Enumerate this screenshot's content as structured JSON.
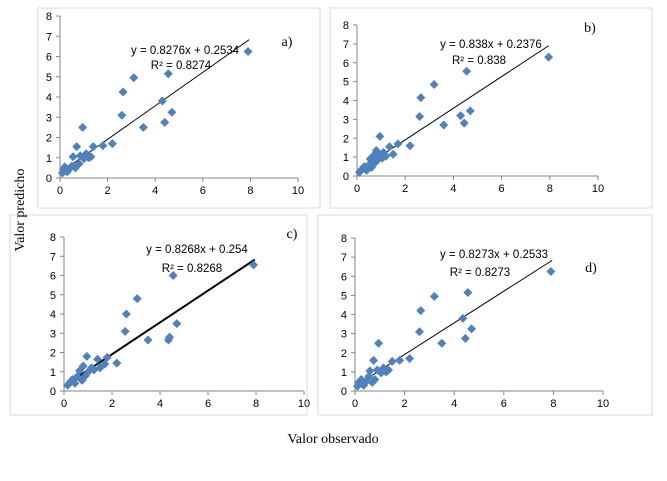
{
  "axes": {
    "xlabel": "Valor observado",
    "ylabel": "Valor predicho"
  },
  "chart_data": [
    {
      "type": "scatter",
      "panel": "a)",
      "equation": "y = 0.8276x + 0.2534",
      "r2": "R² = 0.8274",
      "trendline": {
        "slope": 0.8276,
        "intercept": 0.2534
      },
      "thick_trendline": false,
      "xlim": [
        0,
        10
      ],
      "ylim": [
        0,
        8
      ],
      "xticks": [
        0,
        2,
        4,
        6,
        8,
        10
      ],
      "yticks": [
        0,
        1,
        2,
        3,
        4,
        5,
        6,
        7,
        8
      ],
      "points": [
        [
          0.1,
          0.25
        ],
        [
          0.15,
          0.4
        ],
        [
          0.2,
          0.55
        ],
        [
          0.3,
          0.3
        ],
        [
          0.4,
          0.45
        ],
        [
          0.5,
          0.6
        ],
        [
          0.55,
          1.05
        ],
        [
          0.65,
          0.5
        ],
        [
          0.7,
          1.55
        ],
        [
          0.8,
          0.7
        ],
        [
          0.85,
          1.1
        ],
        [
          0.95,
          2.5
        ],
        [
          1.0,
          0.95
        ],
        [
          1.1,
          1.2
        ],
        [
          1.2,
          1.0
        ],
        [
          1.3,
          1.05
        ],
        [
          1.4,
          1.55
        ],
        [
          1.8,
          1.6
        ],
        [
          2.2,
          1.7
        ],
        [
          2.6,
          3.1
        ],
        [
          2.65,
          4.25
        ],
        [
          3.1,
          4.95
        ],
        [
          3.5,
          2.5
        ],
        [
          4.3,
          3.8
        ],
        [
          4.4,
          2.75
        ],
        [
          4.55,
          5.15
        ],
        [
          4.7,
          3.25
        ],
        [
          7.9,
          6.25
        ]
      ]
    },
    {
      "type": "scatter",
      "panel": "b)",
      "equation": "y = 0.838x + 0.2376",
      "r2": "R² = 0.838",
      "trendline": {
        "slope": 0.838,
        "intercept": 0.2376
      },
      "thick_trendline": false,
      "xlim": [
        0,
        10
      ],
      "ylim": [
        0,
        8
      ],
      "xticks": [
        0,
        2,
        4,
        6,
        8,
        10
      ],
      "yticks": [
        0,
        1,
        2,
        3,
        4,
        5,
        6,
        7,
        8
      ],
      "points": [
        [
          0.1,
          0.2
        ],
        [
          0.2,
          0.35
        ],
        [
          0.3,
          0.5
        ],
        [
          0.4,
          0.3
        ],
        [
          0.5,
          0.6
        ],
        [
          0.55,
          0.9
        ],
        [
          0.6,
          0.45
        ],
        [
          0.7,
          1.1
        ],
        [
          0.75,
          0.7
        ],
        [
          0.8,
          1.35
        ],
        [
          0.85,
          0.85
        ],
        [
          0.9,
          1.2
        ],
        [
          0.95,
          2.1
        ],
        [
          1.05,
          0.95
        ],
        [
          1.1,
          1.25
        ],
        [
          1.2,
          1.05
        ],
        [
          1.35,
          1.55
        ],
        [
          1.5,
          1.15
        ],
        [
          1.7,
          1.7
        ],
        [
          2.2,
          1.6
        ],
        [
          2.6,
          3.15
        ],
        [
          2.65,
          4.15
        ],
        [
          3.2,
          4.85
        ],
        [
          3.6,
          2.7
        ],
        [
          4.3,
          3.2
        ],
        [
          4.45,
          2.8
        ],
        [
          4.55,
          5.55
        ],
        [
          4.7,
          3.45
        ],
        [
          7.95,
          6.3
        ]
      ]
    },
    {
      "type": "scatter",
      "panel": "c)",
      "equation": "y = 0.8268x + 0.254",
      "r2": "R² = 0.8268",
      "trendline": {
        "slope": 0.8268,
        "intercept": 0.254
      },
      "thick_trendline": true,
      "xlim": [
        0,
        10
      ],
      "ylim": [
        0,
        8
      ],
      "xticks": [
        0,
        2,
        4,
        6,
        8,
        10
      ],
      "yticks": [
        0,
        1,
        2,
        3,
        4,
        5,
        6,
        7,
        8
      ],
      "points": [
        [
          0.15,
          0.3
        ],
        [
          0.25,
          0.45
        ],
        [
          0.35,
          0.6
        ],
        [
          0.45,
          0.4
        ],
        [
          0.55,
          0.75
        ],
        [
          0.65,
          1.05
        ],
        [
          0.75,
          0.55
        ],
        [
          0.8,
          1.3
        ],
        [
          0.9,
          0.8
        ],
        [
          0.95,
          1.8
        ],
        [
          1.05,
          1.05
        ],
        [
          1.15,
          1.2
        ],
        [
          1.25,
          1.1
        ],
        [
          1.4,
          1.65
        ],
        [
          1.5,
          1.2
        ],
        [
          1.7,
          1.4
        ],
        [
          1.8,
          1.75
        ],
        [
          2.2,
          1.45
        ],
        [
          2.55,
          3.1
        ],
        [
          2.6,
          4.0
        ],
        [
          3.05,
          4.8
        ],
        [
          3.5,
          2.65
        ],
        [
          4.35,
          2.65
        ],
        [
          4.4,
          2.8
        ],
        [
          4.55,
          6.0
        ],
        [
          4.7,
          3.5
        ],
        [
          7.9,
          6.55
        ]
      ]
    },
    {
      "type": "scatter",
      "panel": "d)",
      "equation": "y = 0.8273x + 0.2533",
      "r2": "R² = 0.8273",
      "trendline": {
        "slope": 0.8273,
        "intercept": 0.2533
      },
      "thick_trendline": false,
      "xlim": [
        0,
        10
      ],
      "ylim": [
        0,
        8
      ],
      "xticks": [
        0,
        2,
        4,
        6,
        8,
        10
      ],
      "yticks": [
        0,
        1,
        2,
        3,
        4,
        5,
        6,
        7,
        8
      ],
      "points": [
        [
          0.1,
          0.25
        ],
        [
          0.15,
          0.45
        ],
        [
          0.25,
          0.6
        ],
        [
          0.35,
          0.3
        ],
        [
          0.45,
          0.5
        ],
        [
          0.55,
          0.75
        ],
        [
          0.6,
          1.05
        ],
        [
          0.7,
          0.45
        ],
        [
          0.75,
          1.6
        ],
        [
          0.8,
          0.6
        ],
        [
          0.9,
          1.1
        ],
        [
          0.95,
          2.5
        ],
        [
          1.05,
          0.95
        ],
        [
          1.15,
          1.2
        ],
        [
          1.25,
          1.0
        ],
        [
          1.35,
          1.1
        ],
        [
          1.5,
          1.55
        ],
        [
          1.8,
          1.6
        ],
        [
          2.2,
          1.7
        ],
        [
          2.6,
          3.1
        ],
        [
          2.65,
          4.2
        ],
        [
          3.2,
          4.95
        ],
        [
          3.5,
          2.5
        ],
        [
          4.35,
          3.8
        ],
        [
          4.45,
          2.75
        ],
        [
          4.55,
          5.15
        ],
        [
          4.7,
          3.25
        ],
        [
          7.9,
          6.25
        ]
      ]
    }
  ]
}
